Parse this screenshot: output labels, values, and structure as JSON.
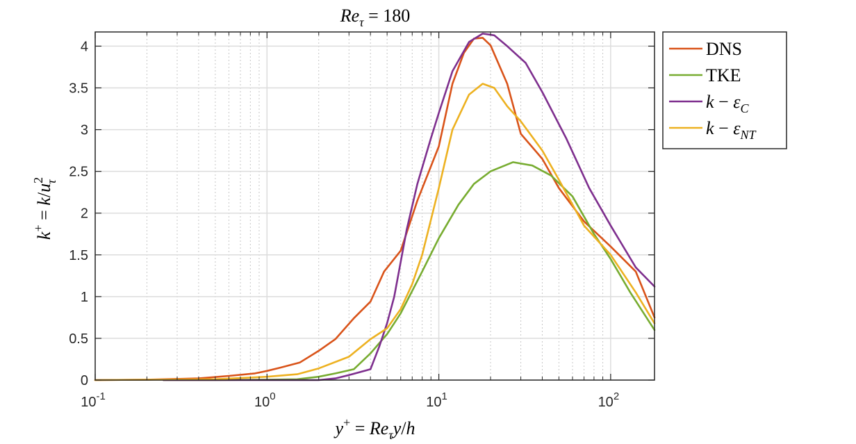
{
  "chart_data": {
    "type": "line",
    "title": "Re_τ = 180",
    "xlabel": "y+ = Re_τ y/h",
    "ylabel": "k+ = k/u_τ²",
    "xscale": "log",
    "xlim": [
      0.1,
      180
    ],
    "ylim": [
      0,
      4.17
    ],
    "grid": true,
    "legend_position": "outside-top-right",
    "x_ticks": [
      {
        "value": 0.1,
        "base": "10",
        "exp": "-1"
      },
      {
        "value": 1,
        "base": "10",
        "exp": "0"
      },
      {
        "value": 10,
        "base": "10",
        "exp": "1"
      },
      {
        "value": 100,
        "base": "10",
        "exp": "2"
      }
    ],
    "y_ticks": [
      {
        "value": 0,
        "label": "0"
      },
      {
        "value": 0.5,
        "label": "0.5"
      },
      {
        "value": 1,
        "label": "1"
      },
      {
        "value": 1.5,
        "label": "1.5"
      },
      {
        "value": 2,
        "label": "2"
      },
      {
        "value": 2.5,
        "label": "2.5"
      },
      {
        "value": 3,
        "label": "3"
      },
      {
        "value": 3.5,
        "label": "3.5"
      },
      {
        "value": 4,
        "label": "4"
      }
    ],
    "series": [
      {
        "name": "DNS",
        "color": "#D95319",
        "x": [
          0.1,
          0.2,
          0.4,
          0.6,
          0.85,
          1.0,
          1.2,
          1.55,
          2.0,
          2.5,
          3.2,
          4.0,
          4.8,
          6.0,
          7.5,
          10.0,
          12.0,
          14.0,
          16.0,
          18.0,
          20.0,
          25.0,
          30.0,
          40.0,
          50.0,
          70.0,
          100.0,
          140.0,
          180.0
        ],
        "y": [
          0.0,
          0.005,
          0.02,
          0.05,
          0.08,
          0.11,
          0.15,
          0.21,
          0.35,
          0.49,
          0.74,
          0.94,
          1.3,
          1.55,
          2.15,
          2.8,
          3.55,
          3.92,
          4.09,
          4.1,
          4.01,
          3.55,
          2.95,
          2.65,
          2.3,
          1.9,
          1.6,
          1.3,
          0.75
        ]
      },
      {
        "name": "TKE",
        "color": "#77AC30",
        "x": [
          0.25,
          0.5,
          1.0,
          1.5,
          2.0,
          2.5,
          3.2,
          4.0,
          5.0,
          6.0,
          8.0,
          10.0,
          13.0,
          16.0,
          20.0,
          27.0,
          35.0,
          45.0,
          60.0,
          80.0,
          100.0,
          130.0,
          180.0
        ],
        "y": [
          0.0,
          0.0,
          0.005,
          0.01,
          0.04,
          0.08,
          0.13,
          0.32,
          0.55,
          0.8,
          1.3,
          1.7,
          2.1,
          2.35,
          2.5,
          2.61,
          2.57,
          2.45,
          2.2,
          1.75,
          1.45,
          1.05,
          0.6
        ]
      },
      {
        "name": "k − ε_C",
        "color": "#7E2F8E",
        "x": [
          0.25,
          0.5,
          1.0,
          2.0,
          2.5,
          3.0,
          4.0,
          4.5,
          5.0,
          5.5,
          6.5,
          7.5,
          9.0,
          10.0,
          12.0,
          15.0,
          18.0,
          21.0,
          25.0,
          32.0,
          40.0,
          55.0,
          75.0,
          100.0,
          140.0,
          180.0
        ],
        "y": [
          0.0,
          0.0,
          0.0,
          0.0,
          0.02,
          0.06,
          0.13,
          0.4,
          0.68,
          1.0,
          1.8,
          2.35,
          2.9,
          3.2,
          3.7,
          4.05,
          4.15,
          4.13,
          4.0,
          3.8,
          3.45,
          2.9,
          2.3,
          1.85,
          1.35,
          1.12
        ]
      },
      {
        "name": "k − ε_NT",
        "color": "#EDB120",
        "x": [
          0.1,
          0.5,
          1.0,
          1.5,
          2.0,
          3.0,
          4.0,
          5.0,
          6.0,
          7.0,
          8.0,
          10.0,
          12.0,
          15.0,
          18.0,
          21.0,
          25.0,
          30.0,
          40.0,
          50.0,
          70.0,
          100.0,
          140.0,
          180.0
        ],
        "y": [
          0.0,
          0.01,
          0.04,
          0.07,
          0.14,
          0.28,
          0.49,
          0.62,
          0.85,
          1.15,
          1.5,
          2.3,
          3.0,
          3.42,
          3.55,
          3.5,
          3.28,
          3.1,
          2.75,
          2.4,
          1.85,
          1.5,
          1.05,
          0.68
        ]
      }
    ]
  }
}
